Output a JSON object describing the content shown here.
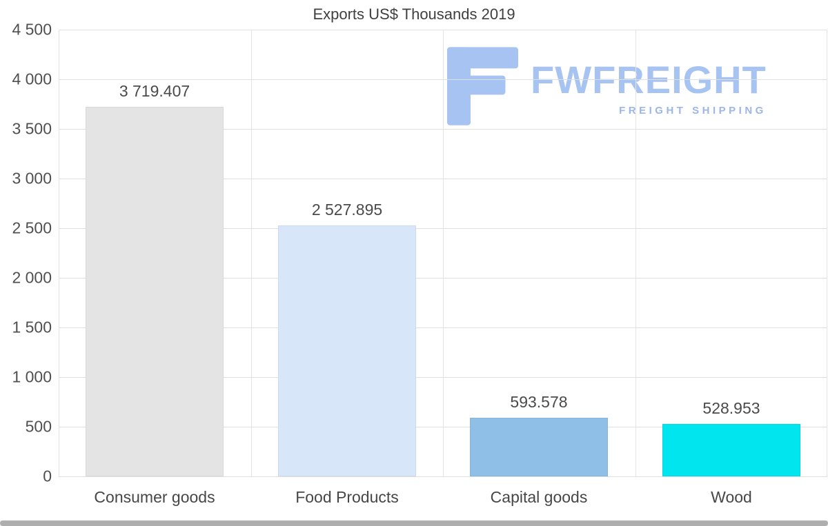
{
  "title": "Exports US$ Thousands 2019",
  "logo": {
    "name": "FWFREIGHT",
    "tagline": "FREIGHT SHIPPING",
    "color": "#a7c3f1",
    "tagline_color": "#9bb6e9"
  },
  "chart_data": {
    "type": "bar",
    "title": "Exports US$ Thousands 2019",
    "categories": [
      "Consumer goods",
      "Food Products",
      "Capital goods",
      "Wood"
    ],
    "values": [
      3719.407,
      2527.895,
      593.578,
      528.953
    ],
    "value_labels": [
      "3 719.407",
      "2 527.895",
      "593.578",
      "528.953"
    ],
    "bar_colors": [
      "#e4e4e4",
      "#d7e6f8",
      "#8fbfe6",
      "#00e5ee"
    ],
    "ylim": [
      0,
      4500
    ],
    "ytick_interval": 500,
    "ytick_labels": [
      "0",
      "500",
      "1 000",
      "1 500",
      "2 000",
      "2 500",
      "3 000",
      "3 500",
      "4 000",
      "4 500"
    ],
    "grid": true,
    "legend": false
  }
}
